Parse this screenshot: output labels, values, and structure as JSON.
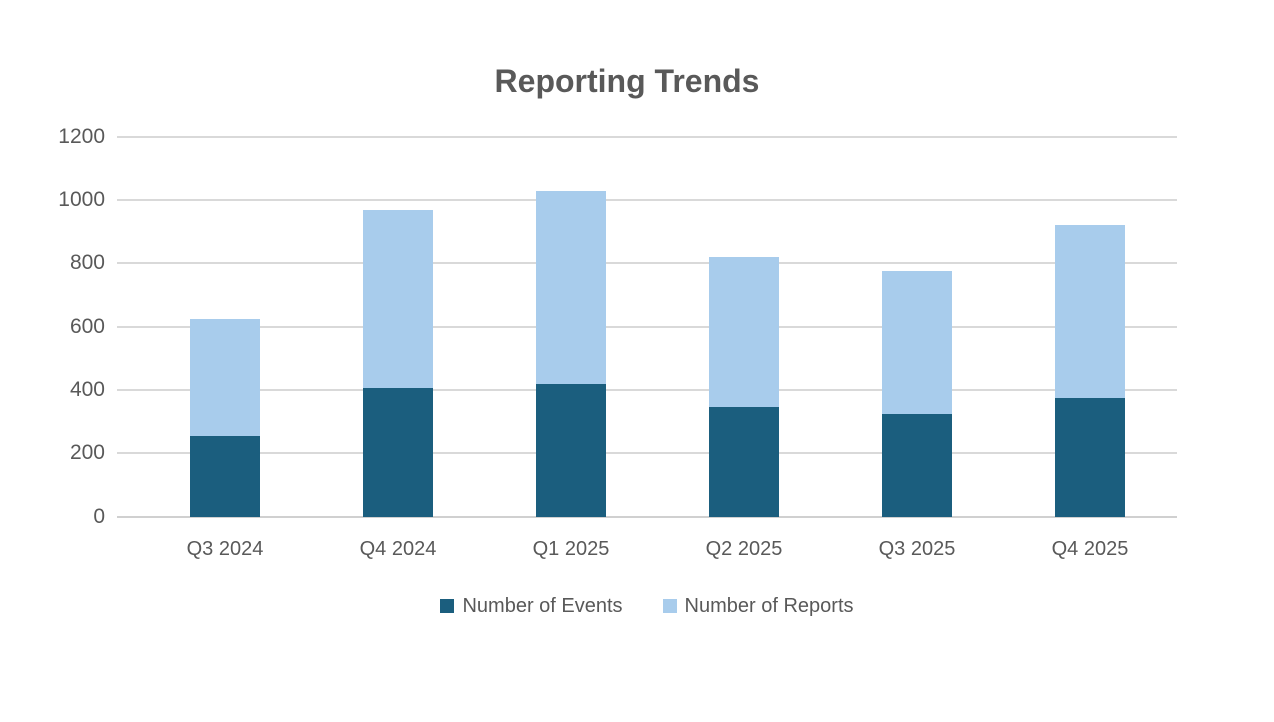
{
  "title": "Reporting Trends",
  "colors": {
    "events_series": "#1B5E7E",
    "reports_series": "#A8CCEC",
    "gridline": "#D9D9D9",
    "axis_text": "#595959",
    "title_text": "#595959",
    "background": "#FFFFFF"
  },
  "chart_data": {
    "type": "bar",
    "stacked": true,
    "title": "Reporting Trends",
    "categories": [
      "Q3 2024",
      "Q4 2024",
      "Q1 2025",
      "Q2 2025",
      "Q3 2025",
      "Q4 2025"
    ],
    "series": [
      {
        "name": "Number of Events",
        "color": "#1B5E7E",
        "values": [
          255,
          405,
          420,
          345,
          325,
          375
        ]
      },
      {
        "name": "Number of Reports",
        "color": "#A8CCEC",
        "values": [
          370,
          565,
          610,
          475,
          450,
          545
        ]
      }
    ],
    "stacked_totals": [
      625,
      970,
      1030,
      820,
      775,
      920
    ],
    "xlabel": "",
    "ylabel": "",
    "ylim": [
      0,
      1200
    ],
    "yticks": [
      0,
      200,
      400,
      600,
      800,
      1000,
      1200
    ],
    "grid": "horizontal",
    "legend_position": "bottom"
  }
}
